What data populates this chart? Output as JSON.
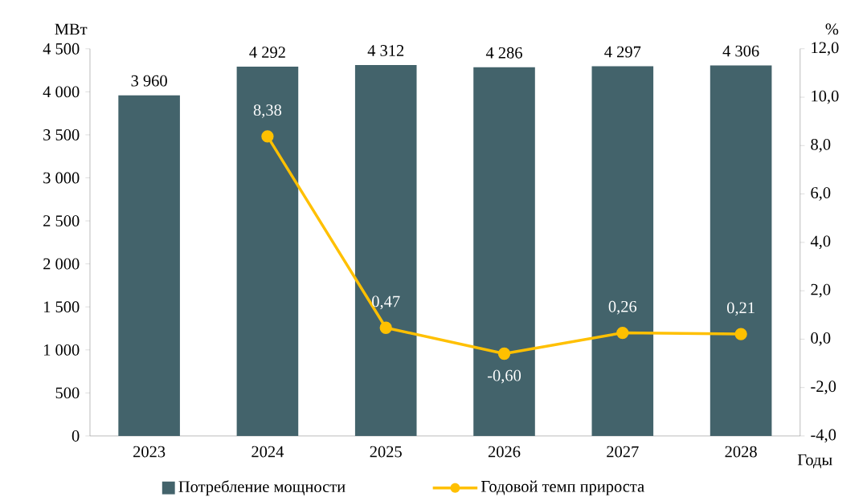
{
  "chart_data": {
    "type": "bar",
    "categories": [
      "2023",
      "2024",
      "2025",
      "2026",
      "2027",
      "2028"
    ],
    "series": [
      {
        "name": "Потребление мощности",
        "color": "#43636b",
        "values": [
          3960,
          4292,
          4312,
          4286,
          4297,
          4306
        ],
        "value_labels": [
          "3 960",
          "4 292",
          "4 312",
          "4 286",
          "4 297",
          "4 306"
        ]
      },
      {
        "name": "Годовой темп прироста",
        "type": "line",
        "axis": "y2",
        "color": "#ffc000",
        "values": [
          null,
          8.38,
          0.47,
          -0.6,
          0.26,
          0.21
        ],
        "value_labels": [
          null,
          "8,38",
          "0,47",
          "-0,60",
          "0,26",
          "0,21"
        ]
      }
    ],
    "ylabel": "МВт",
    "y2label": "%",
    "xlabel": "Годы",
    "ylim": [
      0,
      4500
    ],
    "yticks": [
      0,
      500,
      {
        "value": 1000,
        "label": "1 000"
      },
      {
        "value": 1500,
        "label": "1 500"
      },
      {
        "value": 2000,
        "label": "2 000"
      },
      {
        "value": 2500,
        "label": "2 500"
      },
      {
        "value": 3000,
        "label": "3 000"
      },
      {
        "value": 3500,
        "label": "3 500"
      },
      {
        "value": 4000,
        "label": "4 000"
      },
      {
        "value": 4500,
        "label": "4 500"
      }
    ],
    "y2lim": [
      -4,
      12
    ],
    "y2ticks": [
      {
        "value": -4,
        "label": "-4,0"
      },
      {
        "value": -2,
        "label": "-2,0"
      },
      {
        "value": 0,
        "label": "0,0"
      },
      {
        "value": 2,
        "label": "2,0"
      },
      {
        "value": 4,
        "label": "4,0"
      },
      {
        "value": 6,
        "label": "6,0"
      },
      {
        "value": 8,
        "label": "8,0"
      },
      {
        "value": 10,
        "label": "10,0"
      },
      {
        "value": 12,
        "label": "12,0"
      }
    ],
    "marker": "circle",
    "legend": "bottom",
    "grid": false
  }
}
